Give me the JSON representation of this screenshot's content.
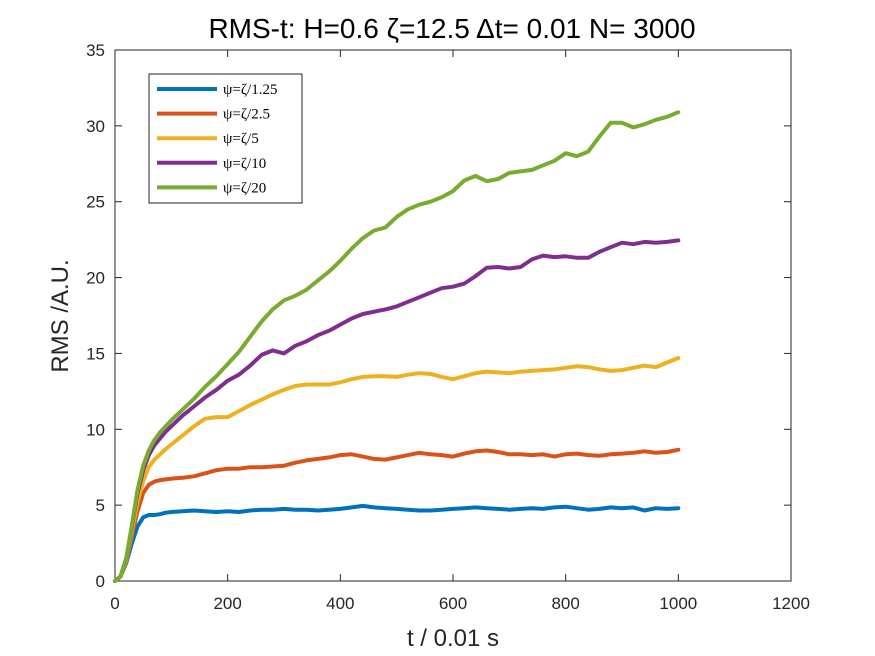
{
  "chart_data": {
    "type": "line",
    "title": "RMS-t:  H=0.6 ζ=12.5 Δt= 0.01 N= 3000",
    "xlabel": "t / 0.01 s",
    "ylabel": "RMS /A.U.",
    "xlim": [
      0,
      1200
    ],
    "ylim": [
      0,
      35
    ],
    "xticks": [
      0,
      200,
      400,
      600,
      800,
      1000,
      1200
    ],
    "yticks": [
      0,
      5,
      10,
      15,
      20,
      25,
      30,
      35
    ],
    "grid": false,
    "legend_position": "top-left",
    "x": [
      0,
      10,
      20,
      30,
      40,
      50,
      60,
      70,
      80,
      90,
      100,
      120,
      140,
      160,
      180,
      200,
      220,
      240,
      260,
      280,
      300,
      320,
      340,
      360,
      380,
      400,
      420,
      440,
      460,
      480,
      500,
      520,
      540,
      560,
      580,
      600,
      620,
      640,
      660,
      680,
      700,
      720,
      740,
      760,
      780,
      800,
      820,
      840,
      860,
      880,
      900,
      920,
      940,
      960,
      980,
      1000
    ],
    "series": [
      {
        "name": "ψ=ζ/1.25",
        "color": "#0072BD",
        "values": [
          0,
          0.3,
          1.2,
          2.5,
          3.6,
          4.2,
          4.35,
          4.35,
          4.4,
          4.5,
          4.55,
          4.6,
          4.65,
          4.6,
          4.55,
          4.6,
          4.55,
          4.65,
          4.7,
          4.7,
          4.75,
          4.7,
          4.7,
          4.65,
          4.7,
          4.75,
          4.85,
          4.95,
          4.85,
          4.8,
          4.75,
          4.7,
          4.65,
          4.65,
          4.7,
          4.75,
          4.8,
          4.85,
          4.8,
          4.75,
          4.7,
          4.75,
          4.8,
          4.75,
          4.85,
          4.9,
          4.8,
          4.7,
          4.75,
          4.85,
          4.8,
          4.85,
          4.65,
          4.8,
          4.75,
          4.8
        ]
      },
      {
        "name": "ψ=ζ/2.5",
        "color": "#D95319",
        "values": [
          0,
          0.3,
          1.3,
          3.0,
          4.6,
          5.8,
          6.35,
          6.55,
          6.65,
          6.7,
          6.75,
          6.8,
          6.9,
          7.1,
          7.3,
          7.4,
          7.4,
          7.5,
          7.5,
          7.55,
          7.6,
          7.8,
          7.95,
          8.05,
          8.15,
          8.3,
          8.35,
          8.2,
          8.05,
          8.0,
          8.15,
          8.3,
          8.45,
          8.35,
          8.3,
          8.2,
          8.4,
          8.55,
          8.6,
          8.5,
          8.35,
          8.35,
          8.3,
          8.35,
          8.2,
          8.35,
          8.4,
          8.3,
          8.25,
          8.35,
          8.4,
          8.45,
          8.55,
          8.45,
          8.5,
          8.65
        ]
      },
      {
        "name": "ψ=ζ/5",
        "color": "#EDB120",
        "values": [
          0,
          0.3,
          1.4,
          3.3,
          5.2,
          6.6,
          7.5,
          8.0,
          8.35,
          8.7,
          9.0,
          9.6,
          10.2,
          10.7,
          10.8,
          10.8,
          11.2,
          11.6,
          11.95,
          12.3,
          12.6,
          12.85,
          12.95,
          12.95,
          12.95,
          13.1,
          13.3,
          13.45,
          13.5,
          13.5,
          13.45,
          13.6,
          13.7,
          13.65,
          13.45,
          13.3,
          13.5,
          13.7,
          13.8,
          13.75,
          13.7,
          13.8,
          13.85,
          13.9,
          13.95,
          14.05,
          14.15,
          14.1,
          13.95,
          13.85,
          13.9,
          14.05,
          14.2,
          14.1,
          14.4,
          14.7
        ]
      },
      {
        "name": "ψ=ζ/10",
        "color": "#7E2F8E",
        "values": [
          0,
          0.3,
          1.5,
          3.6,
          5.8,
          7.3,
          8.3,
          8.95,
          9.4,
          9.85,
          10.2,
          10.9,
          11.5,
          12.1,
          12.6,
          13.2,
          13.6,
          14.2,
          14.9,
          15.2,
          15.0,
          15.5,
          15.8,
          16.2,
          16.5,
          16.9,
          17.3,
          17.6,
          17.75,
          17.9,
          18.1,
          18.4,
          18.7,
          19.0,
          19.3,
          19.4,
          19.6,
          20.1,
          20.65,
          20.7,
          20.6,
          20.7,
          21.2,
          21.45,
          21.35,
          21.4,
          21.3,
          21.3,
          21.7,
          22.0,
          22.3,
          22.2,
          22.35,
          22.3,
          22.35,
          22.45
        ]
      },
      {
        "name": "ψ=ζ/20",
        "color": "#77AC30",
        "values": [
          0,
          0.3,
          1.5,
          3.7,
          6.0,
          7.6,
          8.6,
          9.3,
          9.8,
          10.2,
          10.6,
          11.3,
          12.0,
          12.8,
          13.5,
          14.3,
          15.1,
          16.1,
          17.1,
          17.9,
          18.5,
          18.8,
          19.2,
          19.8,
          20.4,
          21.1,
          21.9,
          22.6,
          23.1,
          23.3,
          24.0,
          24.5,
          24.8,
          25.0,
          25.3,
          25.7,
          26.4,
          26.7,
          26.35,
          26.5,
          26.9,
          27.0,
          27.1,
          27.4,
          27.7,
          28.2,
          28.0,
          28.3,
          29.3,
          30.2,
          30.2,
          29.9,
          30.1,
          30.4,
          30.6,
          30.9
        ]
      }
    ]
  }
}
